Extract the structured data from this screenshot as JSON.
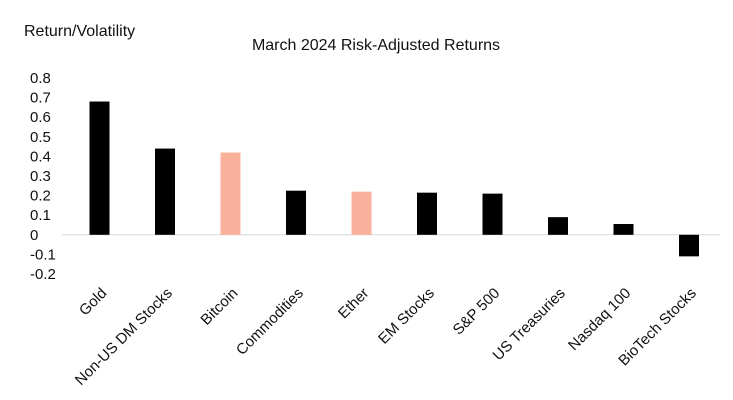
{
  "chart_data": {
    "type": "bar",
    "title": "March 2024 Risk-Adjusted Returns",
    "ylabel": "Return/Volatility",
    "xlabel": "",
    "categories": [
      "Gold",
      "Non-US DM Stocks",
      "Bitcoin",
      "Commodities",
      "Ether",
      "EM Stocks",
      "S&P 500",
      "US Treasuries",
      "Nasdaq 100",
      "BioTech Stocks"
    ],
    "values": [
      0.68,
      0.44,
      0.42,
      0.225,
      0.22,
      0.215,
      0.21,
      0.09,
      0.055,
      -0.11
    ],
    "bar_colors": [
      "#000000",
      "#000000",
      "#F9B19B",
      "#000000",
      "#F9B19B",
      "#000000",
      "#000000",
      "#000000",
      "#000000",
      "#000000"
    ],
    "ylim": [
      -0.2,
      0.8
    ],
    "yticks": [
      0.8,
      0.7,
      0.6,
      0.5,
      0.4,
      0.3,
      0.2,
      0.1,
      0,
      -0.1,
      -0.2
    ],
    "ytick_labels": [
      "0.8",
      "0.7",
      "0.6",
      "0.5",
      "0.4",
      "0.3",
      "0.2",
      "0.1",
      "0",
      "-0.1",
      "-0.2"
    ],
    "grid": false,
    "legend": "none",
    "zero_line_color": "#D9D9D9"
  }
}
